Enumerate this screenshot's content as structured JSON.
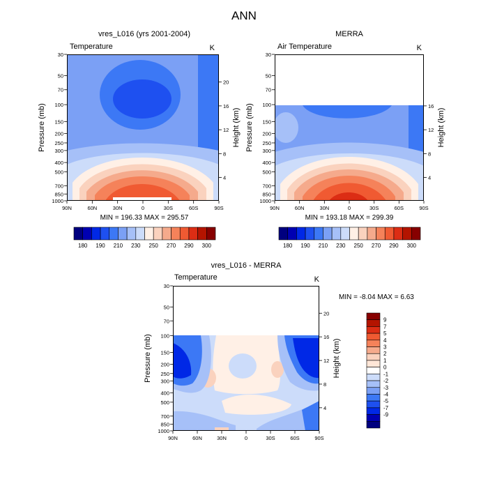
{
  "figure_title": "ANN",
  "colors": {
    "temperature_scale": [
      "#00007f",
      "#0000b2",
      "#0028e6",
      "#1e50f0",
      "#3c78f5",
      "#7ba0f5",
      "#a6c0f8",
      "#ccdcfa",
      "#fff0e6",
      "#fad2be",
      "#f5aa8c",
      "#f5825a",
      "#f05a32",
      "#dc2d14",
      "#b41400",
      "#870000"
    ],
    "difference_scale": [
      "#00007f",
      "#0000b2",
      "#0028e6",
      "#1e50f0",
      "#3c78f5",
      "#7ba0f5",
      "#a6c0f8",
      "#ccdcfa",
      "#ffffff",
      "#ffe6d7",
      "#fad2be",
      "#f5aa8c",
      "#f5825a",
      "#f05a32",
      "#dc2d14",
      "#b41400",
      "#870000"
    ]
  },
  "panels": [
    {
      "title": "vres_L016 (yrs 2001-2004)",
      "left_label": "Temperature",
      "right_label": "K",
      "min_max": "MIN = 196.33  MAX = 295.57",
      "y_left_label": "Pressure (mb)",
      "y_right_label": "Height (km)"
    },
    {
      "title": "MERRA",
      "left_label": "Air Temperature",
      "right_label": "K",
      "min_max": "MIN = 193.18  MAX = 299.39",
      "y_left_label": "Pressure (mb)",
      "y_right_label": "Height (km)"
    },
    {
      "title": "vres_L016 - MERRA",
      "left_label": "Temperature",
      "right_label": "K",
      "min_max": "MIN =  -8.04  MAX =   6.63",
      "y_left_label": "Pressure (mb)",
      "y_right_label": "Height (km)"
    }
  ],
  "chart_data": [
    {
      "type": "heatmap",
      "title": "vres_L016 (yrs 2001-2004)",
      "variable": "Temperature",
      "units": "K",
      "x_ticks": [
        "90N",
        "60N",
        "30N",
        "0",
        "30S",
        "60S",
        "90S"
      ],
      "y_ticks": [
        "30",
        "50",
        "70",
        "100",
        "150",
        "200",
        "250",
        "300",
        "400",
        "500",
        "700",
        "850",
        "1000"
      ],
      "y_right_ticks": [
        "20",
        "16",
        "12",
        "8",
        "4"
      ],
      "ylim_mb": [
        1000,
        30
      ],
      "min": 196.33,
      "max": 295.57,
      "colorbar_labels": [
        "180",
        "190",
        "210",
        "230",
        "250",
        "270",
        "290",
        "300"
      ]
    },
    {
      "type": "heatmap",
      "title": "MERRA",
      "variable": "Air Temperature",
      "units": "K",
      "x_ticks": [
        "90N",
        "60N",
        "30N",
        "0",
        "30S",
        "60S",
        "90S"
      ],
      "y_ticks": [
        "30",
        "50",
        "70",
        "100",
        "150",
        "200",
        "250",
        "300",
        "400",
        "500",
        "700",
        "850",
        "1000"
      ],
      "y_right_ticks": [
        "16",
        "12",
        "8",
        "4"
      ],
      "ylim_mb": [
        1000,
        30
      ],
      "data_top_mb": 100,
      "min": 193.18,
      "max": 299.39,
      "colorbar_labels": [
        "180",
        "190",
        "210",
        "230",
        "250",
        "270",
        "290",
        "300"
      ]
    },
    {
      "type": "heatmap",
      "title": "vres_L016 - MERRA",
      "variable": "Temperature",
      "units": "K",
      "x_ticks": [
        "90N",
        "60N",
        "30N",
        "0",
        "30S",
        "60S",
        "90S"
      ],
      "y_ticks": [
        "30",
        "50",
        "70",
        "100",
        "150",
        "200",
        "250",
        "300",
        "400",
        "500",
        "700",
        "850",
        "1000"
      ],
      "y_right_ticks": [
        "20",
        "16",
        "12",
        "8",
        "4"
      ],
      "ylim_mb": [
        1000,
        30
      ],
      "data_top_mb": 100,
      "min": -8.04,
      "max": 6.63,
      "colorbar_labels": [
        "9",
        "7",
        "5",
        "4",
        "3",
        "2",
        "1",
        "0",
        "-1",
        "-2",
        "-3",
        "-4",
        "-5",
        "-7",
        "-9"
      ]
    }
  ]
}
